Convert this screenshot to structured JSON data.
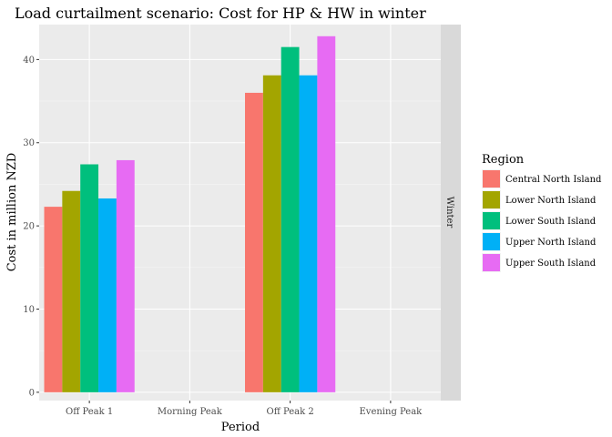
{
  "chart_data": {
    "type": "bar",
    "title": "Load curtailment scenario: Cost for HP & HW in winter",
    "xlabel": "Period",
    "ylabel": "Cost in million NZD",
    "facet": "Winter",
    "categories": [
      "Off Peak 1",
      "Morning Peak",
      "Off Peak 2",
      "Evening Peak"
    ],
    "ylim": [
      -1,
      44.2
    ],
    "yticks": [
      0,
      10,
      20,
      30,
      40
    ],
    "legend_title": "Region",
    "legend_position": "right",
    "grid": true,
    "series": [
      {
        "name": "Central North Island",
        "color": "#F8766D",
        "values": [
          22.3,
          0,
          36.0,
          0
        ]
      },
      {
        "name": "Lower North Island",
        "color": "#A3A500",
        "values": [
          24.2,
          0,
          38.1,
          0
        ]
      },
      {
        "name": "Lower South Island",
        "color": "#00BF7D",
        "values": [
          27.4,
          0,
          41.5,
          0
        ]
      },
      {
        "name": "Upper North Island",
        "color": "#00B0F6",
        "values": [
          23.3,
          0,
          38.1,
          0
        ]
      },
      {
        "name": "Upper South Island",
        "color": "#E76BF3",
        "values": [
          27.9,
          0,
          42.8,
          0
        ]
      }
    ]
  }
}
